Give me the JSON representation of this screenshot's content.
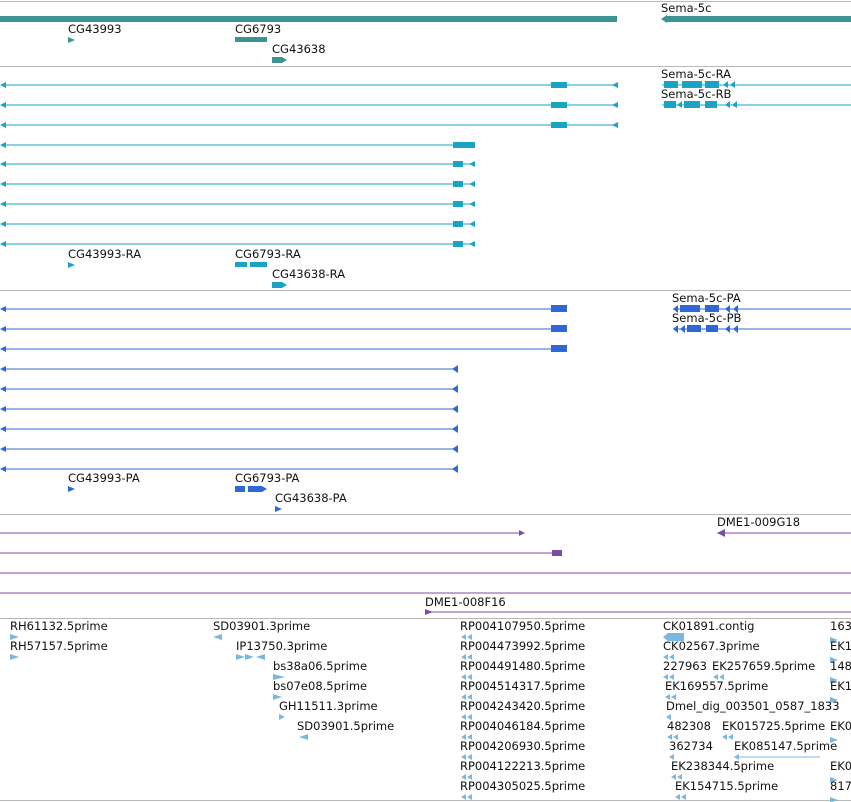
{
  "colors": {
    "gene": "#3d9393",
    "transcript": "#1aa3c4",
    "protein": "#2e68d6",
    "clone": "#7a4ea8",
    "est": "#7ab8e0"
  },
  "gene_track": {
    "labels": [
      "Sema-5c",
      "CG43993",
      "CG6793",
      "CG43638"
    ]
  },
  "transcript_track": {
    "labels": [
      "Sema-5c-RA",
      "Sema-5c-RB",
      "CG43993-RA",
      "CG6793-RA",
      "CG43638-RA"
    ]
  },
  "protein_track": {
    "labels": [
      "Sema-5c-PA",
      "Sema-5c-PB",
      "CG43993-PA",
      "CG6793-PA",
      "CG43638-PA"
    ]
  },
  "clone_track": {
    "labels": [
      "DME1-009G18",
      "DME1-008F16"
    ]
  },
  "est_track": {
    "labels": [
      "RH61132.5prime",
      "RH57157.5prime",
      "SD03901.3prime",
      "IP13750.3prime",
      "bs38a06.5prime",
      "bs07e08.5prime",
      "GH11511.3prime",
      "SD03901.5prime",
      "RP004107950.5prime",
      "RP004473992.5prime",
      "RP004491480.5prime",
      "RP004514317.5prime",
      "RP004243420.5prime",
      "RP004046184.5prime",
      "RP004206930.5prime",
      "RP004122213.5prime",
      "RP004305025.5prime",
      "CK01891.contig",
      "CK02567.3prime",
      "227963",
      "EK257659.5prime",
      "EK169557.5prime",
      "Dmel_dig_003501_0587_1833",
      "482308",
      "EK015725.5prime",
      "362734",
      "EK085147.5prime",
      "EK238344.5prime",
      "EK154715.5prime",
      "163",
      "EK1",
      "148",
      "EK1",
      "EK0",
      "EK0",
      "817"
    ]
  }
}
